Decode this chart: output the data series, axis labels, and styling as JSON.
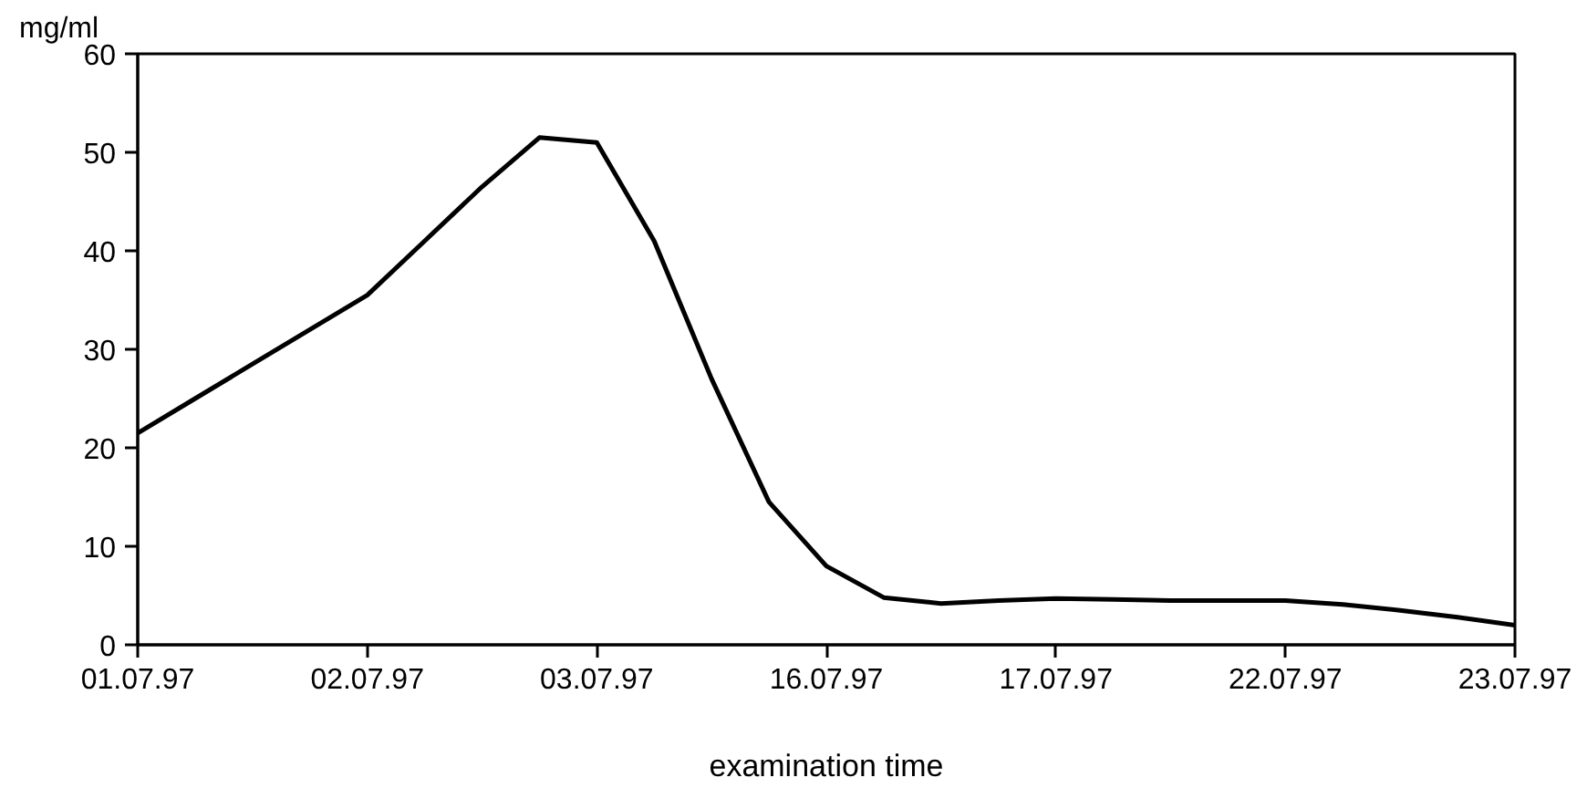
{
  "chart_data": {
    "type": "line",
    "ylabel": "mg/ml",
    "xlabel": "examination time",
    "categories": [
      "01.07.97",
      null,
      null,
      null,
      "02.07.97",
      null,
      null,
      null,
      "03.07.97",
      null,
      null,
      null,
      "16.07.97",
      null,
      null,
      null,
      "17.07.97",
      null,
      null,
      null,
      "22.07.97",
      null,
      null,
      null,
      "23.07.97"
    ],
    "series": [
      {
        "color": "#000000",
        "values": [
          21.5,
          25,
          28.5,
          32,
          35.5,
          41,
          46.5,
          51.5,
          51,
          41,
          27,
          14.5,
          8,
          4.8,
          4.2,
          4.5,
          4.7,
          4.6,
          4.5,
          4.5,
          4.5,
          4.1,
          3.5,
          2.8,
          2
        ]
      }
    ],
    "ylim": [
      0,
      60
    ],
    "yticks": [
      0,
      10,
      20,
      30,
      40,
      50,
      60
    ],
    "grid": false,
    "marker": "none",
    "line_style": "solid"
  }
}
